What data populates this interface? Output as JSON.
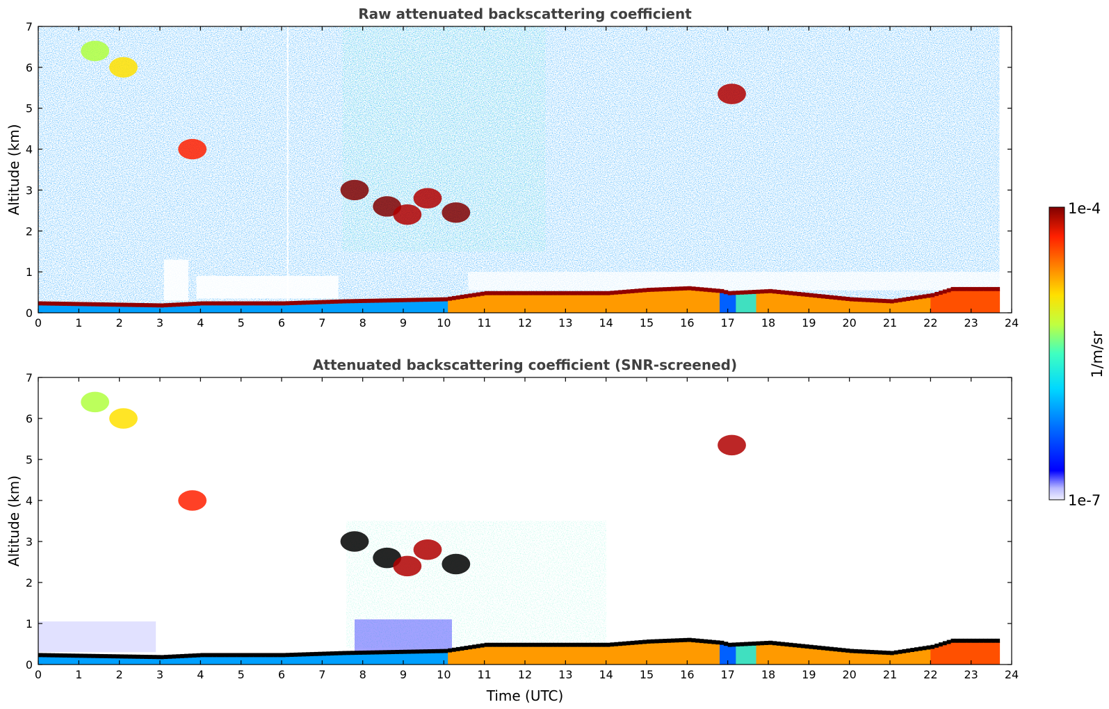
{
  "chart_data": [
    {
      "type": "heatmap",
      "title": "Raw attenuated backscattering coefficient",
      "xlabel": "",
      "ylabel": "Altitude (km)",
      "xlim": [
        0,
        24
      ],
      "ylim": [
        0,
        7
      ],
      "xticks": [
        "0",
        "1",
        "2",
        "3",
        "4",
        "5",
        "6",
        "7",
        "8",
        "9",
        "10",
        "11",
        "12",
        "13",
        "14",
        "15",
        "16",
        "17",
        "18",
        "19",
        "20",
        "21",
        "22",
        "23",
        "24"
      ],
      "yticks": [
        "0",
        "1",
        "2",
        "3",
        "4",
        "5",
        "6",
        "7"
      ],
      "data_end_time": 23.7,
      "boundary_layer_top_km": [
        [
          0,
          0.25
        ],
        [
          3,
          0.2
        ],
        [
          4,
          0.25
        ],
        [
          6,
          0.25
        ],
        [
          7.5,
          0.3
        ],
        [
          10,
          0.35
        ],
        [
          11,
          0.5
        ],
        [
          12,
          0.5
        ],
        [
          14,
          0.5
        ],
        [
          15,
          0.58
        ],
        [
          16,
          0.62
        ],
        [
          16.8,
          0.55
        ],
        [
          17,
          0.5
        ],
        [
          18,
          0.55
        ],
        [
          20,
          0.35
        ],
        [
          21,
          0.3
        ],
        [
          22,
          0.45
        ],
        [
          22.5,
          0.6
        ],
        [
          23.7,
          0.6
        ]
      ],
      "cloud_features": [
        {
          "t": 1.4,
          "alt": 6.4,
          "level": 0.45
        },
        {
          "t": 2.1,
          "alt": 6.0,
          "level": 0.55
        },
        {
          "t": 3.8,
          "alt": 4.0,
          "level": 0.75
        },
        {
          "t": 7.8,
          "alt": 3.0,
          "level": 1.0
        },
        {
          "t": 8.6,
          "alt": 2.6,
          "level": 1.0
        },
        {
          "t": 9.1,
          "alt": 2.4,
          "level": 0.85
        },
        {
          "t": 9.6,
          "alt": 2.8,
          "level": 0.85
        },
        {
          "t": 10.3,
          "alt": 2.45,
          "level": 0.95
        },
        {
          "t": 17.1,
          "alt": 5.35,
          "level": 0.9
        }
      ]
    },
    {
      "type": "heatmap",
      "title": "Attenuated backscattering coefficient (SNR-screened)",
      "xlabel": "Time (UTC)",
      "ylabel": "Altitude (km)",
      "xlim": [
        0,
        24
      ],
      "ylim": [
        0,
        7
      ],
      "xticks": [
        "0",
        "1",
        "2",
        "3",
        "4",
        "5",
        "6",
        "7",
        "8",
        "9",
        "10",
        "11",
        "12",
        "13",
        "14",
        "15",
        "16",
        "17",
        "18",
        "19",
        "20",
        "21",
        "22",
        "23",
        "24"
      ],
      "yticks": [
        "0",
        "1",
        "2",
        "3",
        "4",
        "5",
        "6",
        "7"
      ],
      "data_end_time": 23.7
    }
  ],
  "colorbar": {
    "label": "1/m/sr",
    "max_label": "1e-4",
    "min_label": "1e-7",
    "colormap": [
      "#e8e8ff",
      "#0000ff",
      "#00aaff",
      "#00e0c0",
      "#b0ff40",
      "#ffe000",
      "#ff8000",
      "#ff2000",
      "#b00000",
      "#800000"
    ]
  }
}
